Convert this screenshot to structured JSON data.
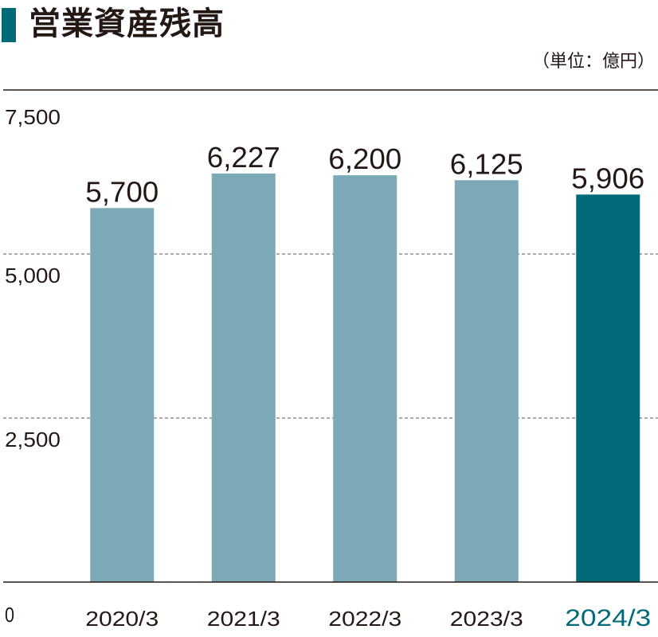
{
  "title": "営業資産残高",
  "unit_label": "（単位：億円）",
  "colors": {
    "bar": "#7ba9b5",
    "highlight": "#006a78",
    "text": "#231815",
    "title_bar": "#006a78"
  },
  "chart_data": {
    "type": "bar",
    "title": "営業資産残高",
    "xlabel": "",
    "ylabel": "",
    "categories": [
      "2020/3",
      "2021/3",
      "2022/3",
      "2023/3",
      "2024/3"
    ],
    "values": [
      5700,
      6227,
      6200,
      6125,
      5906
    ],
    "value_labels": [
      "5,700",
      "6,227",
      "6,200",
      "6,125",
      "5,906"
    ],
    "highlight_index": 4,
    "ylim": [
      0,
      7500
    ],
    "yticks": [
      0,
      2500,
      5000,
      7500
    ],
    "ytick_labels": [
      "0",
      "2,500",
      "5,000",
      "7,500"
    ],
    "grid": "dashed horizontal at 2,500 and 5,000",
    "legend": "none"
  }
}
